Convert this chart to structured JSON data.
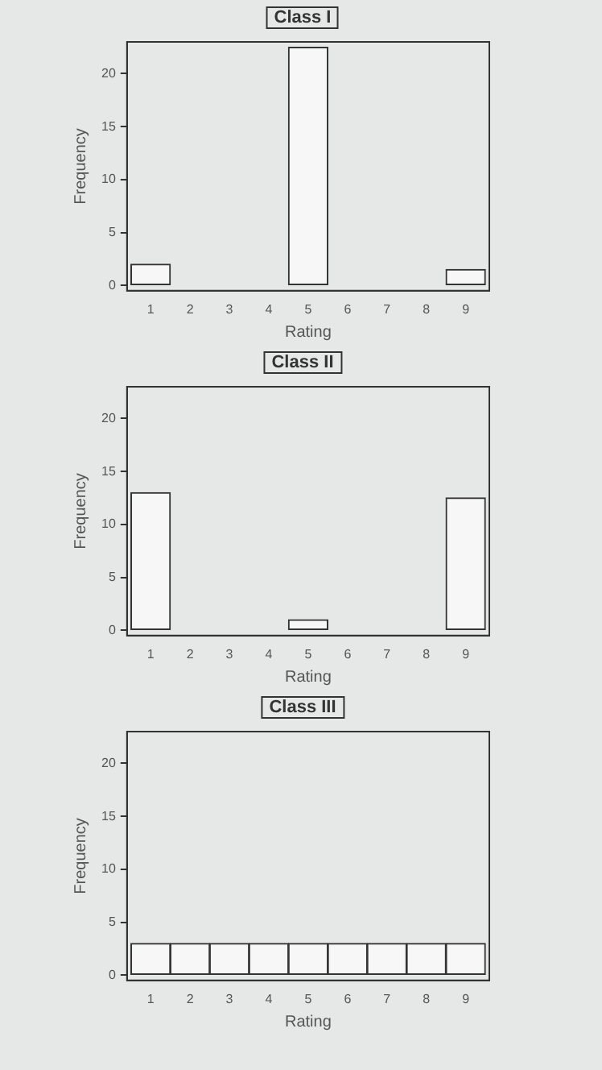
{
  "chart_data": [
    {
      "type": "histogram",
      "title": "Class I",
      "xlabel": "Rating",
      "ylabel": "Frequency",
      "bins": [
        0.5,
        1.5,
        2.5,
        3.5,
        4.5,
        5.5,
        6.5,
        7.5,
        8.5,
        9.5
      ],
      "values": [
        2,
        0,
        0,
        0,
        22.5,
        0,
        0,
        0,
        1.5
      ],
      "color": "#f7f7f7",
      "xlim": [
        0.4,
        9.6
      ],
      "ylim": [
        -0.5,
        23
      ],
      "xticks": [
        1,
        2,
        3,
        4,
        5,
        6,
        7,
        8,
        9
      ],
      "yticks": [
        0,
        5,
        10,
        15,
        20
      ],
      "grid": false,
      "legend": false
    },
    {
      "type": "histogram",
      "title": "Class II",
      "xlabel": "Rating",
      "ylabel": "Frequency",
      "bins": [
        0.5,
        1.5,
        2.5,
        3.5,
        4.5,
        5.5,
        6.5,
        7.5,
        8.5,
        9.5
      ],
      "values": [
        13,
        0,
        0,
        0,
        1,
        0,
        0,
        0,
        12.5
      ],
      "color": "#f7f7f7",
      "xlim": [
        0.4,
        9.6
      ],
      "ylim": [
        -0.5,
        23
      ],
      "xticks": [
        1,
        2,
        3,
        4,
        5,
        6,
        7,
        8,
        9
      ],
      "yticks": [
        0,
        5,
        10,
        15,
        20
      ],
      "grid": false,
      "legend": false
    },
    {
      "type": "histogram",
      "title": "Class III",
      "xlabel": "Rating",
      "ylabel": "Frequency",
      "bins": [
        0.5,
        1.5,
        2.5,
        3.5,
        4.5,
        5.5,
        6.5,
        7.5,
        8.5,
        9.5
      ],
      "values": [
        3,
        3,
        3,
        3,
        3,
        3,
        3,
        3,
        3
      ],
      "color": "#f7f7f7",
      "xlim": [
        0.4,
        9.6
      ],
      "ylim": [
        -0.5,
        23
      ],
      "xticks": [
        1,
        2,
        3,
        4,
        5,
        6,
        7,
        8,
        9
      ],
      "yticks": [
        0,
        5,
        10,
        15,
        20
      ],
      "grid": false,
      "legend": false
    }
  ]
}
